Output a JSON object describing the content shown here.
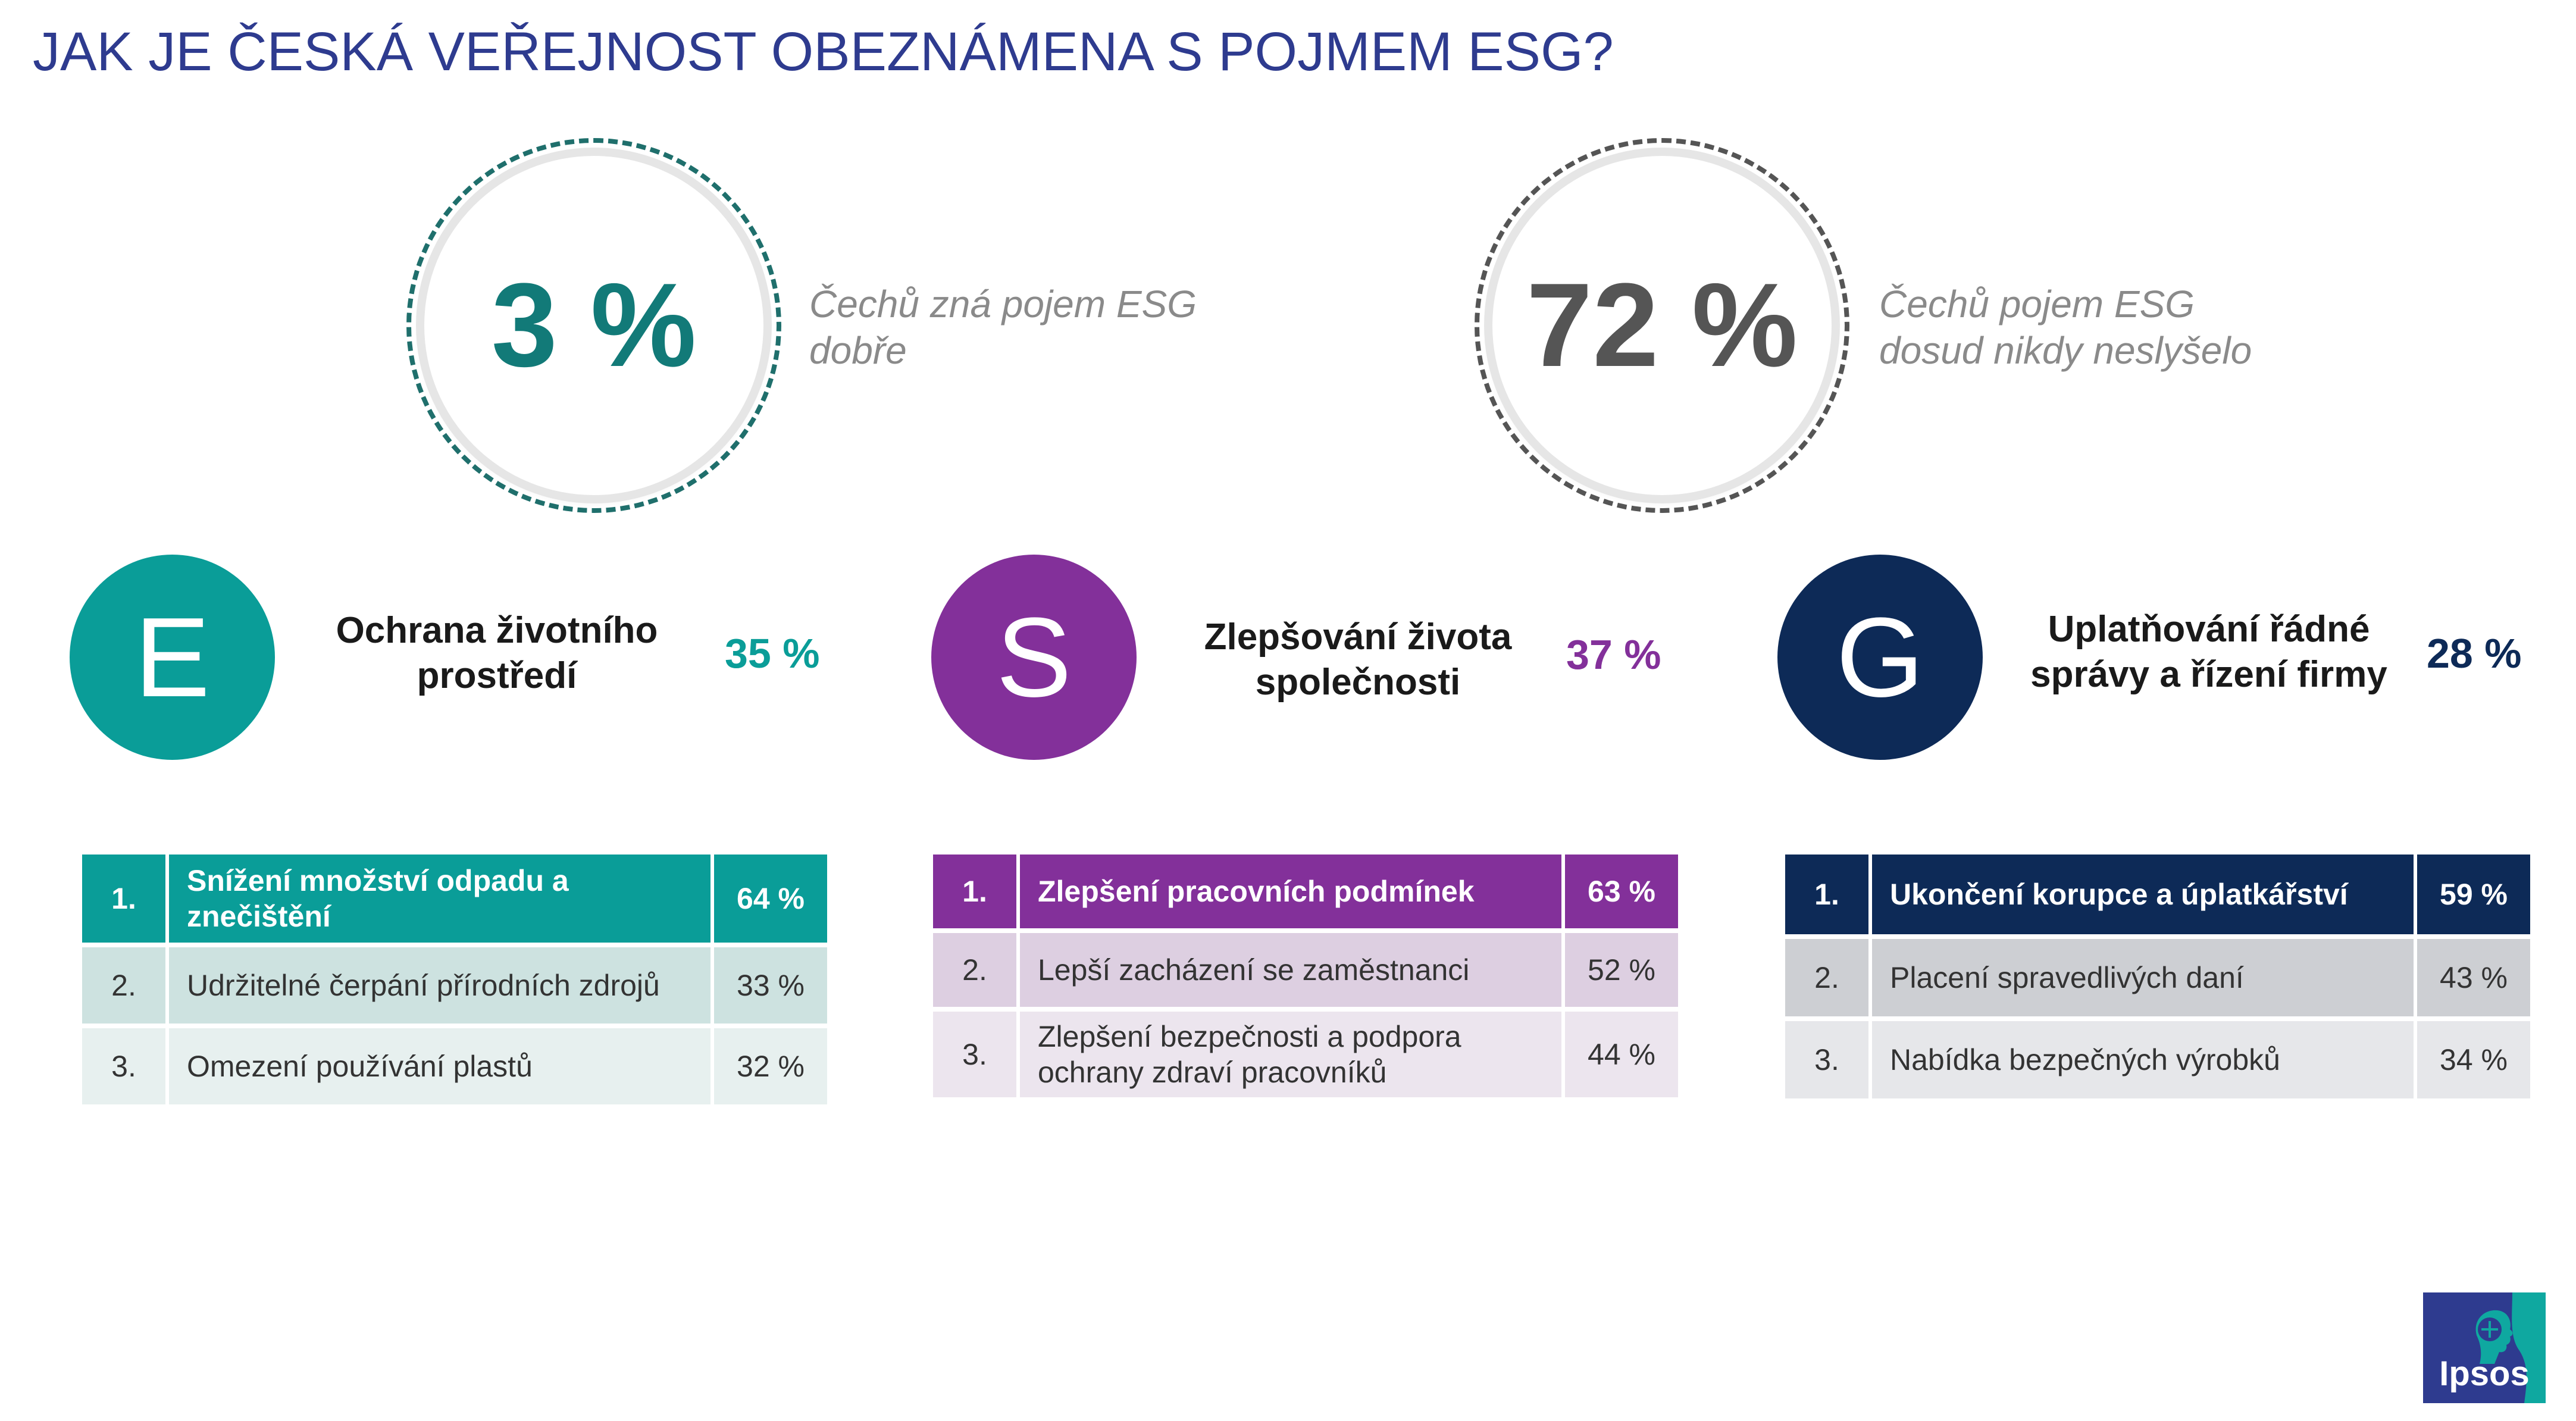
{
  "title": "JAK JE ČESKÁ VEŘEJNOST OBEZNÁMENA S POJMEM ESG?",
  "stats": [
    {
      "value": "3 %",
      "caption_line1": "Čechů zná pojem ESG",
      "caption_line2": "dobře",
      "color": "#127a78"
    },
    {
      "value": "72 %",
      "caption_line1": "Čechů pojem ESG",
      "caption_line2": "dosud nikdy neslyšelo",
      "color": "#555555"
    }
  ],
  "pillars": [
    {
      "letter": "E",
      "name_line1": "Ochrana životního",
      "name_line2": "prostředí",
      "pct": "35 %",
      "color": "#0a9d98",
      "rows": [
        {
          "rank": "1.",
          "text_line1": "Snížení množství odpadu a",
          "text_line2": "znečištění",
          "pct": "64 %"
        },
        {
          "rank": "2.",
          "text_line1": "Udržitelné čerpání přírodních zdrojů",
          "text_line2": "",
          "pct": "33 %"
        },
        {
          "rank": "3.",
          "text_line1": "Omezení používání plastů",
          "text_line2": "",
          "pct": "32 %"
        }
      ]
    },
    {
      "letter": "S",
      "name_line1": "Zlepšování života",
      "name_line2": "společnosti",
      "pct": "37 %",
      "color": "#83309a",
      "rows": [
        {
          "rank": "1.",
          "text_line1": "Zlepšení pracovních podmínek",
          "text_line2": "",
          "pct": "63 %"
        },
        {
          "rank": "2.",
          "text_line1": "Lepší zacházení se zaměstnanci",
          "text_line2": "",
          "pct": "52 %"
        },
        {
          "rank": "3.",
          "text_line1": "Zlepšení bezpečnosti a podpora",
          "text_line2": "ochrany zdraví pracovníků",
          "pct": "44 %"
        }
      ]
    },
    {
      "letter": "G",
      "name_line1": "Uplatňování řádné",
      "name_line2": "správy a řízení firmy",
      "pct": "28 %",
      "color": "#0d2a57",
      "rows": [
        {
          "rank": "1.",
          "text_line1": "Ukončení korupce a úplatkářství",
          "text_line2": "",
          "pct": "59 %"
        },
        {
          "rank": "2.",
          "text_line1": "Placení spravedlivých daní",
          "text_line2": "",
          "pct": "43 %"
        },
        {
          "rank": "3.",
          "text_line1": "Nabídka bezpečných výrobků",
          "text_line2": "",
          "pct": "34 %"
        }
      ]
    }
  ],
  "logo": {
    "text": "Ipsos",
    "icon": "ipsos-face-icon"
  }
}
